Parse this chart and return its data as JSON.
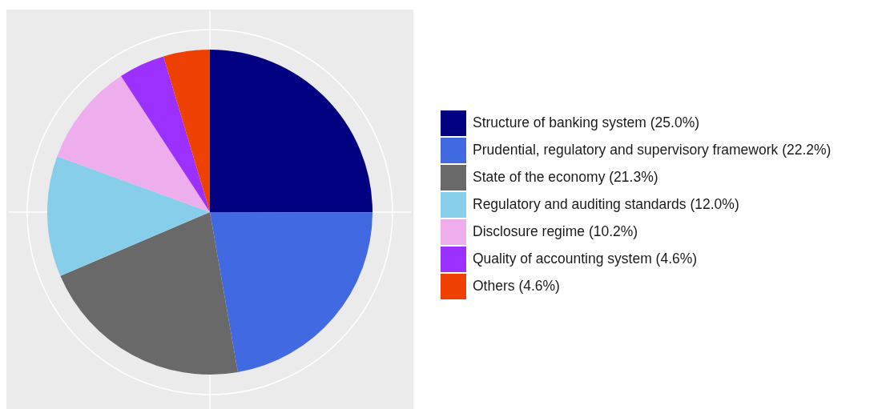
{
  "chart_data": {
    "type": "pie",
    "categories": [
      "Structure of banking system (25.0%)",
      "Prudential, regulatory and supervisory framework (22.2%)",
      "State of the economy (21.3%)",
      "Regulatory and auditing standards (12.0%)",
      "Disclosure regime (10.2%)",
      "Quality of accounting system (4.6%)",
      "Others (4.6%)"
    ],
    "values": [
      25.0,
      22.2,
      21.3,
      12.0,
      10.2,
      4.6,
      4.6
    ],
    "colors": [
      "#000080",
      "#4169e1",
      "#696969",
      "#87ceeb",
      "#eeaeee",
      "#9b30ff",
      "#ee4000"
    ],
    "legend": "right",
    "grid": true
  }
}
